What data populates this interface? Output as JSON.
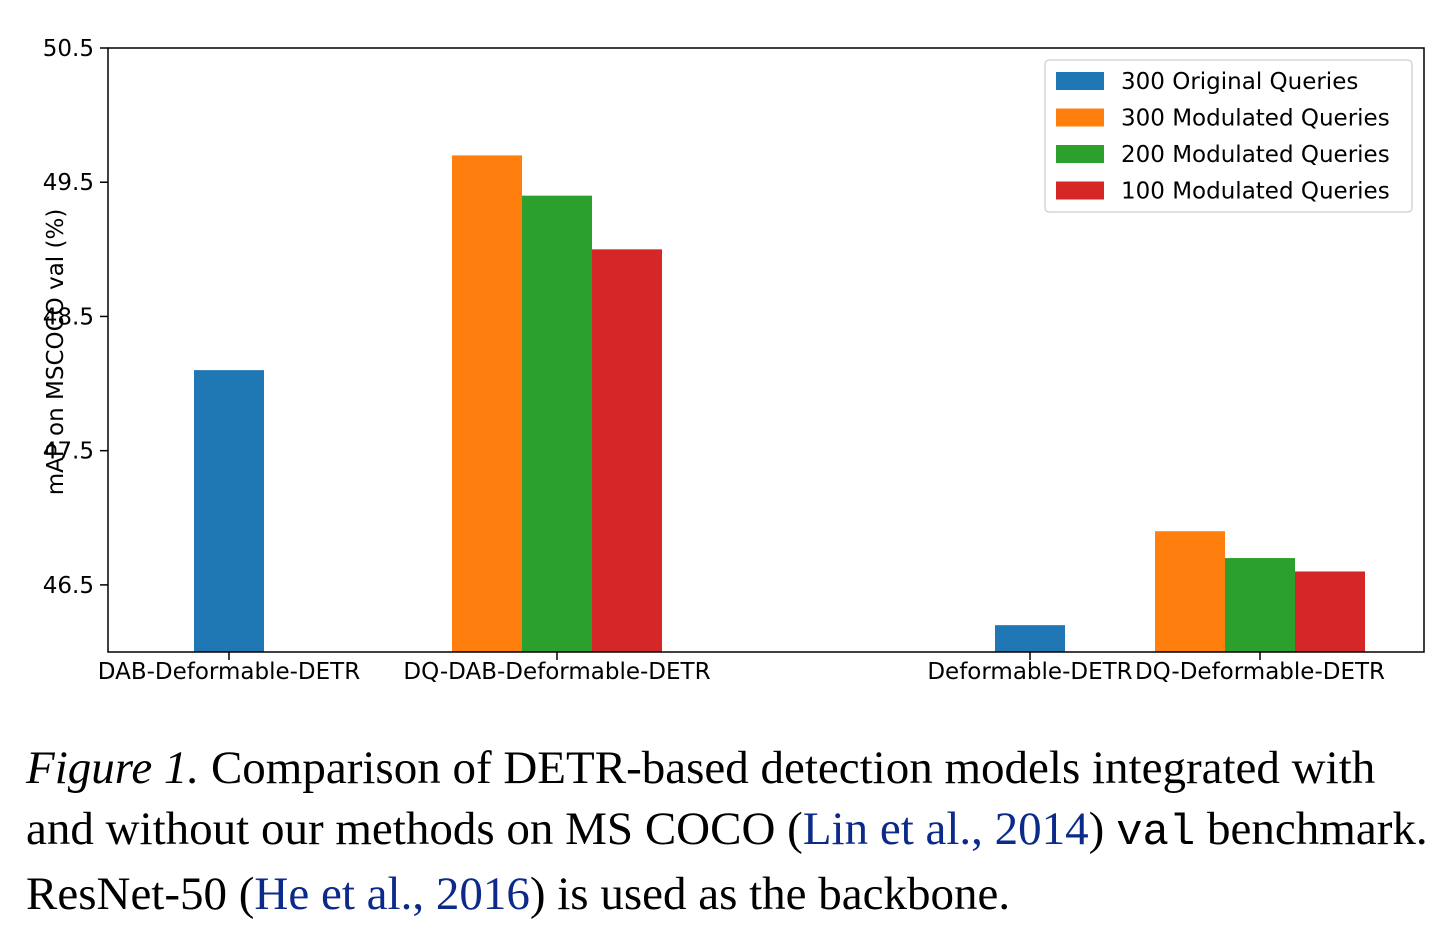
{
  "chart_data": {
    "type": "bar",
    "categories": [
      "DAB-Deformable-DETR",
      "DQ-DAB-Deformable-DETR",
      "Deformable-DETR",
      "DQ-Deformable-DETR"
    ],
    "series": [
      {
        "name": "300 Original Queries",
        "color": "#1f77b4",
        "values": [
          48.1,
          null,
          46.2,
          null
        ]
      },
      {
        "name": "300 Modulated Queries",
        "color": "#ff7f0e",
        "values": [
          null,
          49.7,
          null,
          46.9
        ]
      },
      {
        "name": "200 Modulated Queries",
        "color": "#2ca02c",
        "values": [
          null,
          49.4,
          null,
          46.7
        ]
      },
      {
        "name": "100 Modulated Queries",
        "color": "#d62728",
        "values": [
          null,
          49.0,
          null,
          46.6
        ]
      }
    ],
    "ylabel": "mAP on MSCOCO val (%)",
    "ylim": [
      46.0,
      50.5
    ],
    "yticks": [
      "46.5",
      "47.5",
      "48.5",
      "49.5",
      "50.5"
    ],
    "grid": false,
    "legend_position": "top-right"
  },
  "caption": {
    "label": "Figure 1.",
    "text_1": " Comparison of DETR-based detection models integrated with and without our methods on MS COCO (",
    "cite_1": "Lin et al., 2014",
    "text_2": ") ",
    "mono": "val",
    "text_3": " benchmark. ResNet-50 (",
    "cite_2": "He et al., 2016",
    "text_4": ") is used as the backbone."
  }
}
